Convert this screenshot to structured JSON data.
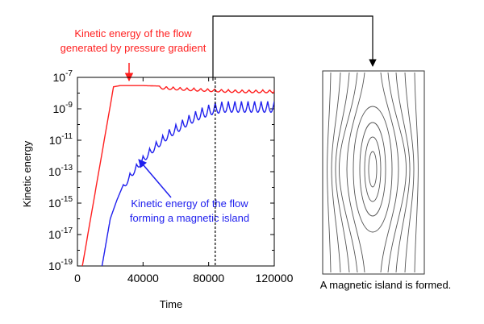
{
  "chart_data": {
    "type": "line",
    "title": "",
    "xlabel": "Time",
    "ylabel": "Kinetic energy",
    "x_ticks": [
      "0",
      "40000",
      "80000",
      "120000"
    ],
    "y_ticks": [
      {
        "base": "10",
        "exp": "-7"
      },
      {
        "base": "10",
        "exp": "-9"
      },
      {
        "base": "10",
        "exp": "-11"
      },
      {
        "base": "10",
        "exp": "-13"
      },
      {
        "base": "10",
        "exp": "-15"
      },
      {
        "base": "10",
        "exp": "-17"
      },
      {
        "base": "10",
        "exp": "-19"
      }
    ],
    "xlim": [
      0,
      120000
    ],
    "ylim": [
      1e-19,
      1e-07
    ],
    "y_scale": "log",
    "grid": false,
    "vline_x": 84000,
    "series": [
      {
        "color": "#ff2020",
        "x": [
          3000,
          22000,
          26000,
          40000,
          50000,
          60000,
          70000,
          80000,
          90000,
          100000,
          110000,
          120000
        ],
        "y": [
          1e-19,
          2.5e-08,
          3e-08,
          3e-08,
          2.8e-08,
          2.4e-08,
          2.1e-08,
          1.9e-08,
          1.7e-08,
          1.6e-08,
          1.6e-08,
          1.6e-08
        ]
      },
      {
        "color": "#2020ee",
        "x": [
          15000,
          20000,
          24000,
          28000,
          32000,
          36000,
          40000,
          44000,
          48000,
          52000,
          56000,
          60000,
          64000,
          68000,
          72000,
          76000,
          80000,
          84000,
          90000,
          100000,
          110000,
          120000
        ],
        "y": [
          1e-19,
          1e-16,
          1.5e-15,
          1.5e-14,
          8e-14,
          3e-13,
          1e-12,
          3e-12,
          8e-12,
          2e-11,
          5e-11,
          1e-10,
          2e-10,
          4e-10,
          7e-10,
          1.2e-09,
          1.8e-09,
          2.5e-09,
          3e-09,
          3e-09,
          3e-09,
          3e-09
        ]
      }
    ]
  },
  "annotations": {
    "red_line1": "Kinetic energy of the flow",
    "red_line2": "generated by pressure gradient",
    "blue_line1": "Kinetic energy of the flow",
    "blue_line2": "forming a magnetic island",
    "island_caption": "A magnetic island is formed."
  },
  "colors": {
    "red": "#ff2020",
    "blue": "#2020ee",
    "axis": "#000000",
    "field_lines": "#555555"
  }
}
